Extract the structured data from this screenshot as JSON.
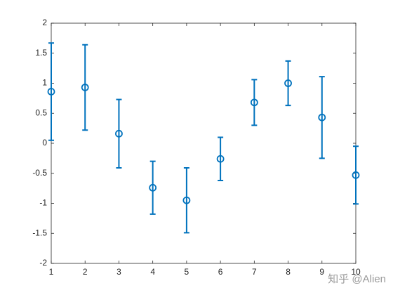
{
  "chart_data": {
    "type": "errorbar",
    "x": [
      1,
      2,
      3,
      4,
      5,
      6,
      7,
      8,
      9,
      10
    ],
    "values": [
      0.86,
      0.93,
      0.16,
      -0.74,
      -0.95,
      -0.26,
      0.68,
      1.0,
      0.43,
      -0.53
    ],
    "errors": [
      0.81,
      0.71,
      0.57,
      0.44,
      0.54,
      0.36,
      0.38,
      0.37,
      0.68,
      0.48
    ],
    "color": "#0072bd",
    "xlim": [
      1,
      10
    ],
    "xticks": [
      1,
      2,
      3,
      4,
      5,
      6,
      7,
      8,
      9,
      10
    ],
    "ylim": [
      -2,
      2
    ],
    "yticks": [
      -2,
      -1.5,
      -1,
      -0.5,
      0,
      0.5,
      1,
      1.5,
      2
    ],
    "watermark": "知乎 @Alien"
  }
}
